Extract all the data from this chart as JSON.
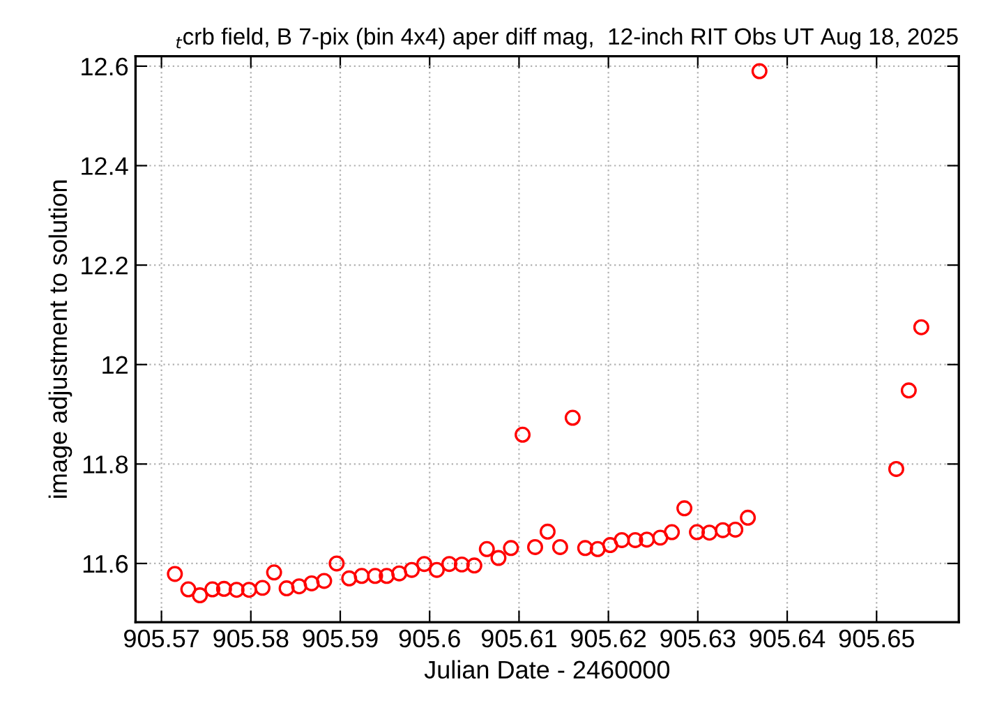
{
  "chart_data": {
    "type": "scatter",
    "title": "$_{t}$crb field, B 7-pix (bin 4x4) aper diff mag,  12-inch RIT Obs UT Aug 18, 2025",
    "xlabel": "Julian Date - 2460000",
    "ylabel": "image adjustment to solution",
    "x": [
      905.5715,
      905.573,
      905.5743,
      905.5757,
      905.577,
      905.5784,
      905.5798,
      905.5813,
      905.5826,
      905.584,
      905.5854,
      905.5868,
      905.5882,
      905.5896,
      905.591,
      905.5924,
      905.5939,
      905.5952,
      905.5966,
      905.598,
      905.5994,
      905.6008,
      905.6022,
      905.6036,
      905.605,
      905.6064,
      905.6077,
      905.6091,
      905.6104,
      905.6118,
      905.6132,
      905.6146,
      905.616,
      905.6174,
      905.6188,
      905.6202,
      905.6215,
      905.623,
      905.6243,
      905.6258,
      905.6271,
      905.6285,
      905.6299,
      905.6313,
      905.6328,
      905.6342,
      905.6356,
      905.6369,
      905.6522,
      905.6536,
      905.655
    ],
    "series": [
      {
        "color": "#ff0000",
        "values": [
          11.579,
          11.548,
          11.536,
          11.548,
          11.549,
          11.547,
          11.547,
          11.551,
          11.582,
          11.55,
          11.554,
          11.56,
          11.565,
          11.6,
          11.57,
          11.575,
          11.575,
          11.575,
          11.58,
          11.587,
          11.599,
          11.587,
          11.599,
          11.598,
          11.596,
          11.629,
          11.611,
          11.631,
          11.859,
          11.633,
          11.664,
          11.633,
          11.893,
          11.631,
          11.629,
          11.637,
          11.647,
          11.647,
          11.648,
          11.652,
          11.663,
          11.711,
          11.663,
          11.662,
          11.667,
          11.668,
          11.692,
          12.59,
          11.79,
          11.948,
          12.075
        ]
      }
    ],
    "xlim": [
      905.5671,
      905.6592
    ],
    "ylim": [
      11.482,
      12.62
    ],
    "xticks": [
      905.57,
      905.58,
      905.59,
      905.6,
      905.61,
      905.62,
      905.63,
      905.64,
      905.65
    ],
    "yticks": [
      11.6,
      11.8,
      12,
      12.2,
      12.4,
      12.6
    ],
    "grid": true,
    "marker": "circle",
    "legend": false
  }
}
